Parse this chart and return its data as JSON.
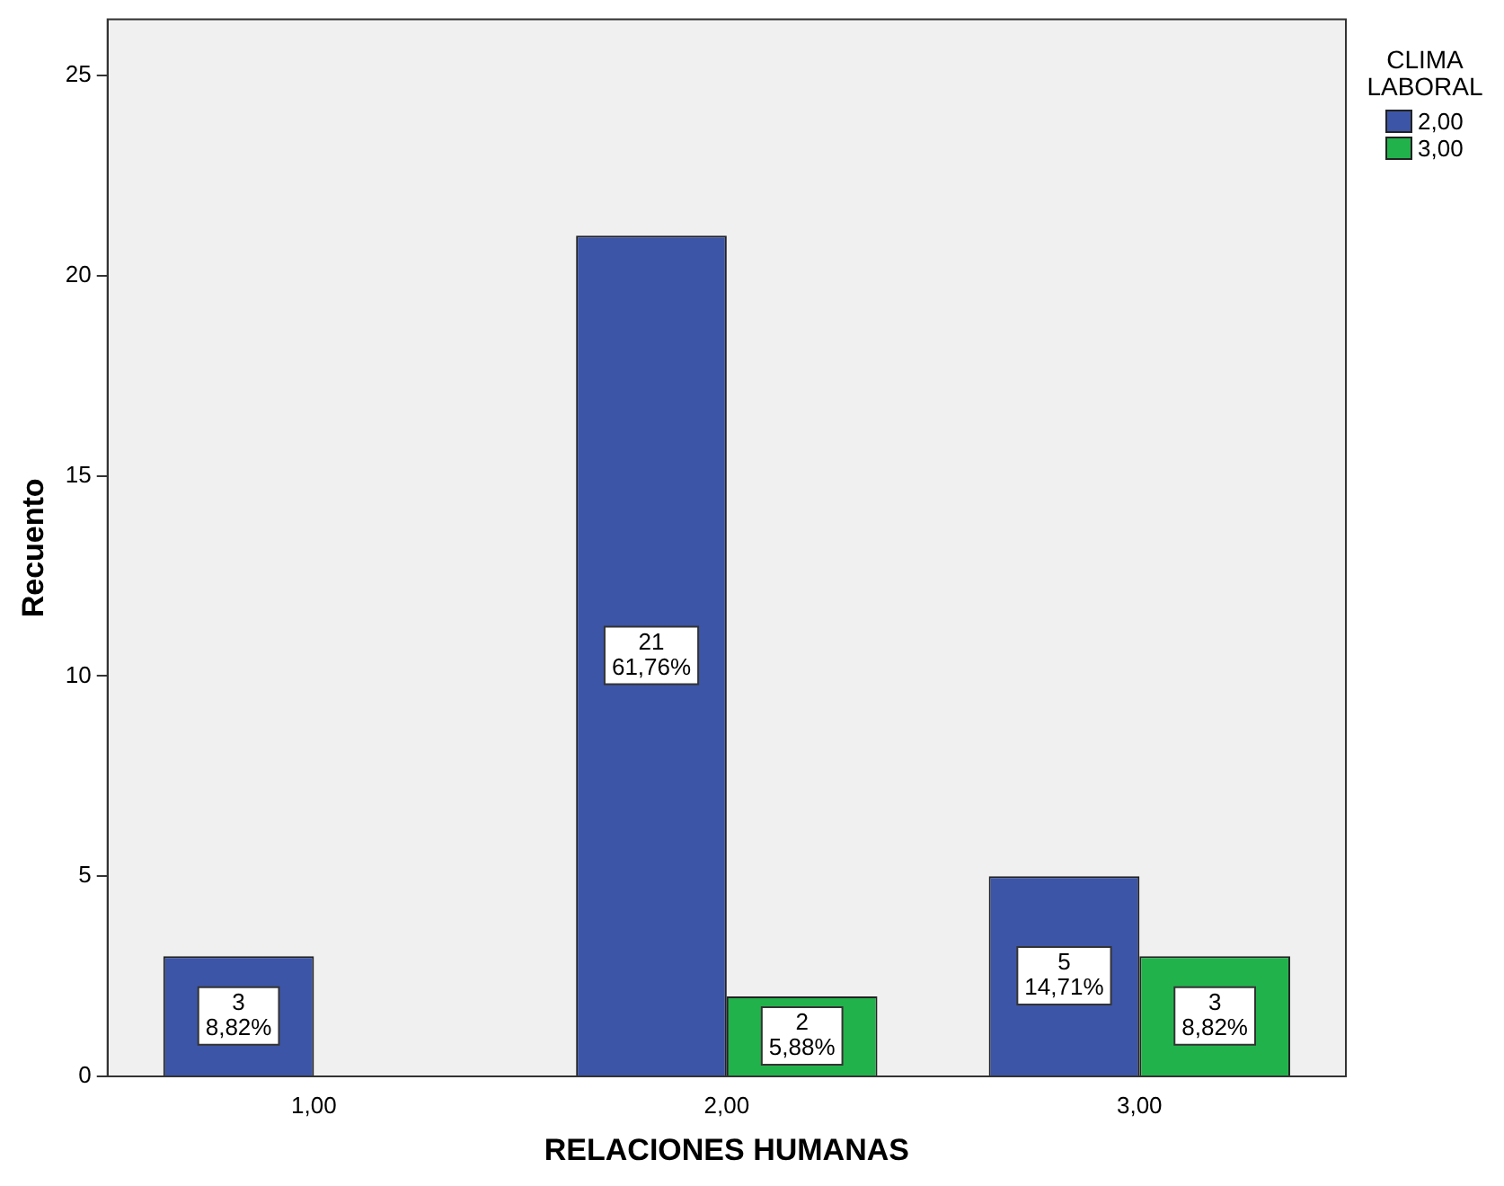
{
  "chart_data": {
    "type": "bar",
    "xlabel": "RELACIONES HUMANAS",
    "ylabel": "Recuento",
    "legend_title": "CLIMA LABORAL",
    "legend": "top right",
    "categories": [
      "1,00",
      "2,00",
      "3,00"
    ],
    "series": [
      {
        "name": "2,00",
        "color": "#3d55a6",
        "values": [
          3,
          21,
          5
        ],
        "value_labels": [
          "3\n8,82%",
          "21\n61,76%",
          "5\n14,71%"
        ]
      },
      {
        "name": "3,00",
        "color": "#22b24c",
        "values": [
          null,
          2,
          3
        ],
        "value_labels": [
          null,
          "2\n5,88%",
          "3\n8,82%"
        ]
      }
    ],
    "ylim": [
      0,
      26.4
    ],
    "yticks": [
      0,
      5,
      10,
      15,
      20,
      25
    ],
    "grid": false
  }
}
